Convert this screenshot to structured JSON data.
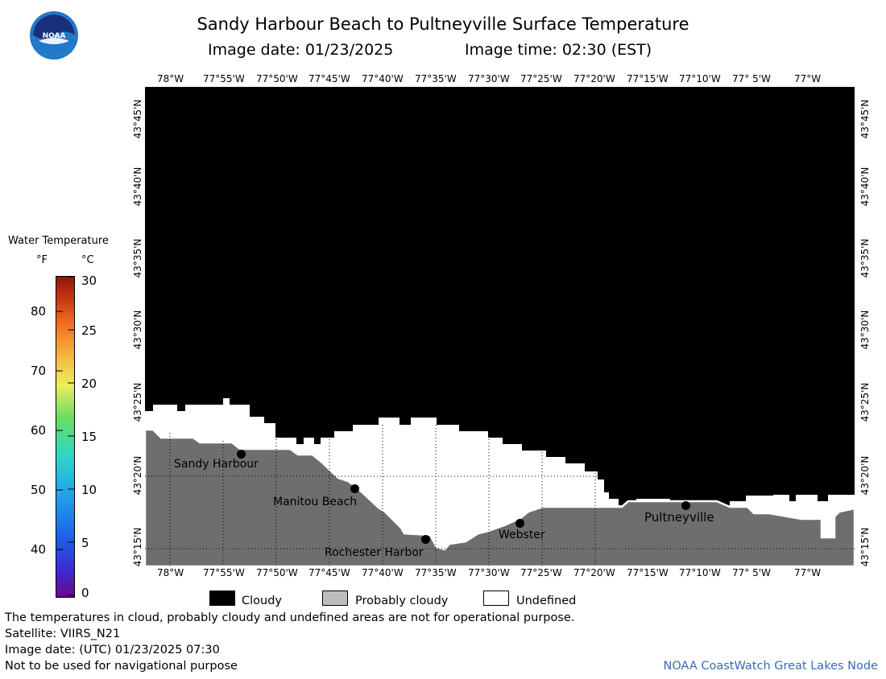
{
  "header": {
    "title": "Sandy Harbour Beach to Pultneyville Surface Temperature",
    "image_date": "Image date: 01/23/2025",
    "image_time": "Image time: 02:30 (EST)"
  },
  "logo": {
    "text": "NOAA",
    "icon": "noaa-logo-icon"
  },
  "map": {
    "lon_labels": [
      "78°W",
      "77°55'W",
      "77°50'W",
      "77°45'W",
      "77°40'W",
      "77°35'W",
      "77°30'W",
      "77°25'W",
      "77°20'W",
      "77°15'W",
      "77°10'W",
      "77° 5'W",
      "77°W"
    ],
    "lat_labels": [
      "43°45'N",
      "43°40'N",
      "43°35'N",
      "43°30'N",
      "43°25'N",
      "43°20'N",
      "43°15'N"
    ],
    "places": [
      {
        "name": "Sandy Harbour"
      },
      {
        "name": "Manitou Beach"
      },
      {
        "name": "Rochester Harbor"
      },
      {
        "name": "Webster"
      },
      {
        "name": "Pultneyville"
      }
    ],
    "colors": {
      "cloudy": "#000000",
      "land": "#6e6e6e",
      "undefined": "#ffffff"
    }
  },
  "colorbar": {
    "title": "Water Temperature",
    "unit_f": "°F",
    "unit_c": "°C",
    "f_ticks": [
      "80",
      "70",
      "60",
      "50",
      "40"
    ],
    "c_ticks": [
      "30",
      "25",
      "20",
      "15",
      "10",
      "5",
      "0"
    ]
  },
  "legend": {
    "cloudy": "Cloudy",
    "probably_cloudy": "Probably cloudy",
    "undefined": "Undefined"
  },
  "footer": {
    "disclaimer": "The temperatures in cloud, probably cloudy and undefined areas are not for operational purpose.",
    "satellite": "Satellite: VIIRS_N21",
    "utc_date": "Image date: (UTC) 01/23/2025  07:30",
    "nav_warning": "Not to be used for navigational purpose",
    "credit": "NOAA CoastWatch Great Lakes Node"
  }
}
